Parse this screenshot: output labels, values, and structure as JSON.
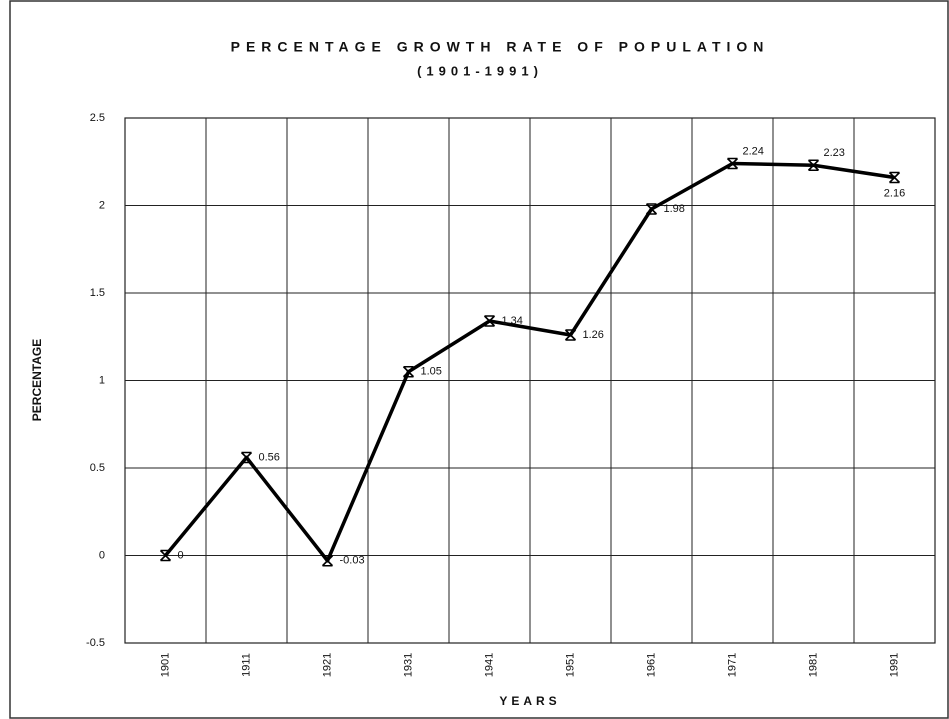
{
  "chart_data": {
    "type": "line",
    "title": "PERCENTAGE GROWTH RATE OF POPULATION",
    "subtitle": "(1901-1991)",
    "xlabel": "YEARS",
    "ylabel": "PERCENTAGE",
    "categories": [
      "1901",
      "1911",
      "1921",
      "1931",
      "1941",
      "1951",
      "1961",
      "1971",
      "1981",
      "1991"
    ],
    "values": [
      0,
      0.56,
      -0.03,
      1.05,
      1.34,
      1.26,
      1.98,
      2.24,
      2.23,
      2.16
    ],
    "color": "#000000",
    "ylim": [
      -0.5,
      2.5
    ],
    "yticks": [
      -0.5,
      0,
      0.5,
      1,
      1.5,
      2,
      2.5
    ],
    "grid": true
  }
}
